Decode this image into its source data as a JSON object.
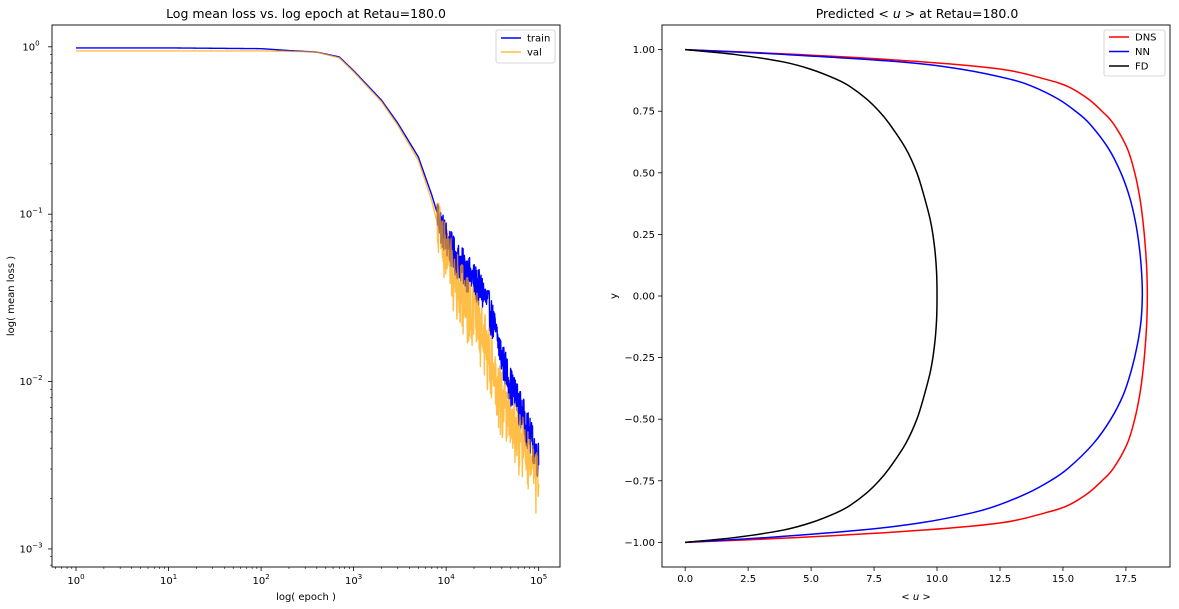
{
  "chart_data": [
    {
      "type": "line",
      "title": "Log mean loss vs. log epoch at Retau=180.0",
      "xlabel": "log( epoch )",
      "ylabel": "log( mean loss )",
      "xscale": "log",
      "yscale": "log",
      "xlim": [
        0.55,
        170000
      ],
      "ylim": [
        0.00078,
        1.35
      ],
      "xticks": [
        {
          "value": 1,
          "base": "10",
          "exp": "0"
        },
        {
          "value": 10,
          "base": "10",
          "exp": "1"
        },
        {
          "value": 100,
          "base": "10",
          "exp": "2"
        },
        {
          "value": 1000,
          "base": "10",
          "exp": "3"
        },
        {
          "value": 10000,
          "base": "10",
          "exp": "4"
        },
        {
          "value": 100000,
          "base": "10",
          "exp": "5"
        }
      ],
      "yticks": [
        {
          "value": 1,
          "base": "10",
          "exp": "0"
        },
        {
          "value": 0.1,
          "base": "10",
          "exp": "−1"
        },
        {
          "value": 0.01,
          "base": "10",
          "exp": "−2"
        },
        {
          "value": 0.001,
          "base": "10",
          "exp": "−3"
        }
      ],
      "legend_position": "top-right",
      "series": [
        {
          "name": "train",
          "color": "#0000ff",
          "x": [
            1,
            10,
            100,
            200,
            400,
            700,
            1000,
            2000,
            3000,
            5000,
            7000,
            9000,
            12000,
            16000,
            20000,
            25000,
            30000,
            40000,
            50000,
            60000,
            70000,
            80000,
            90000,
            100000
          ],
          "y": [
            0.985,
            0.985,
            0.975,
            0.95,
            0.93,
            0.87,
            0.72,
            0.48,
            0.35,
            0.22,
            0.13,
            0.082,
            0.058,
            0.047,
            0.04,
            0.034,
            0.026,
            0.014,
            0.0095,
            0.0075,
            0.006,
            0.0048,
            0.004,
            0.0034
          ],
          "noise_from_x": 8000,
          "noise_lo": 0.75,
          "noise_hi": 1.28
        },
        {
          "name": "val",
          "color": "#ffa500",
          "opacity": 0.72,
          "x": [
            1,
            10,
            100,
            200,
            400,
            700,
            1000,
            2000,
            3000,
            5000,
            7000,
            9000,
            12000,
            16000,
            20000,
            25000,
            30000,
            40000,
            50000,
            60000,
            70000,
            80000,
            90000,
            100000
          ],
          "y": [
            0.945,
            0.945,
            0.945,
            0.94,
            0.93,
            0.86,
            0.71,
            0.47,
            0.34,
            0.21,
            0.12,
            0.068,
            0.042,
            0.03,
            0.024,
            0.018,
            0.013,
            0.0075,
            0.0055,
            0.0045,
            0.0038,
            0.0031,
            0.0026,
            0.0023
          ],
          "noise_from_x": 8000,
          "noise_lo": 0.6,
          "noise_hi": 1.55
        }
      ]
    },
    {
      "type": "line",
      "title_parts": {
        "pre": "Predicted ",
        "expr": "< u >",
        "post": " at Retau=180.0"
      },
      "xlabel": "< u >",
      "ylabel": "y",
      "xlim": [
        -0.92,
        19.25
      ],
      "ylim": [
        -1.1,
        1.1
      ],
      "xticks": [
        {
          "value": 0.0,
          "label": "0.0"
        },
        {
          "value": 2.5,
          "label": "2.5"
        },
        {
          "value": 5.0,
          "label": "5.0"
        },
        {
          "value": 7.5,
          "label": "7.5"
        },
        {
          "value": 10.0,
          "label": "10.0"
        },
        {
          "value": 12.5,
          "label": "12.5"
        },
        {
          "value": 15.0,
          "label": "15.0"
        },
        {
          "value": 17.5,
          "label": "17.5"
        }
      ],
      "yticks": [
        {
          "value": 1.0,
          "label": "1.00"
        },
        {
          "value": 0.75,
          "label": "0.75"
        },
        {
          "value": 0.5,
          "label": "0.50"
        },
        {
          "value": 0.25,
          "label": "0.25"
        },
        {
          "value": 0.0,
          "label": "0.00"
        },
        {
          "value": -0.25,
          "label": "−0.25"
        },
        {
          "value": -0.5,
          "label": "−0.50"
        },
        {
          "value": -0.75,
          "label": "−0.75"
        },
        {
          "value": -1.0,
          "label": "−1.00"
        }
      ],
      "legend_position": "top-right",
      "series": [
        {
          "name": "DNS",
          "color": "#ff0000",
          "y": [
            1.0,
            0.98,
            0.95,
            0.92,
            0.88,
            0.85,
            0.8,
            0.75,
            0.7,
            0.6,
            0.5,
            0.4,
            0.3,
            0.2,
            0.1,
            0.0,
            -0.1,
            -0.2,
            -0.3,
            -0.4,
            -0.5,
            -0.6,
            -0.7,
            -0.75,
            -0.8,
            -0.85,
            -0.88,
            -0.92,
            -0.95,
            -0.98,
            -1.0
          ],
          "x": [
            0.0,
            4.5,
            9.5,
            12.6,
            14.3,
            15.2,
            16.0,
            16.55,
            17.0,
            17.55,
            17.85,
            18.05,
            18.18,
            18.27,
            18.33,
            18.35,
            18.33,
            18.27,
            18.18,
            18.05,
            17.85,
            17.55,
            17.0,
            16.55,
            16.0,
            15.2,
            14.3,
            12.6,
            9.5,
            4.5,
            0.0
          ]
        },
        {
          "name": "NN",
          "color": "#0000ff",
          "y": [
            1.0,
            0.98,
            0.95,
            0.92,
            0.88,
            0.85,
            0.8,
            0.75,
            0.7,
            0.6,
            0.5,
            0.4,
            0.3,
            0.2,
            0.1,
            0.0,
            -0.1,
            -0.2,
            -0.3,
            -0.4,
            -0.5,
            -0.6,
            -0.7,
            -0.75,
            -0.8,
            -0.85,
            -0.88,
            -0.92,
            -0.95,
            -0.98,
            -1.0
          ],
          "x": [
            0.0,
            4.0,
            8.6,
            11.0,
            12.9,
            13.8,
            14.8,
            15.5,
            16.05,
            16.8,
            17.3,
            17.65,
            17.88,
            18.03,
            18.12,
            18.15,
            18.1,
            17.95,
            17.72,
            17.4,
            16.9,
            16.2,
            15.2,
            14.5,
            13.6,
            12.4,
            11.4,
            9.4,
            7.0,
            3.3,
            0.0
          ]
        },
        {
          "name": "FD",
          "color": "#000000",
          "y": [
            1.0,
            0.98,
            0.95,
            0.92,
            0.88,
            0.85,
            0.8,
            0.75,
            0.7,
            0.6,
            0.5,
            0.4,
            0.3,
            0.2,
            0.1,
            0.0,
            -0.1,
            -0.2,
            -0.3,
            -0.4,
            -0.5,
            -0.6,
            -0.7,
            -0.75,
            -0.8,
            -0.85,
            -0.88,
            -0.92,
            -0.95,
            -0.98,
            -1.0
          ],
          "x": [
            0.0,
            2.0,
            3.9,
            5.0,
            6.0,
            6.55,
            7.2,
            7.7,
            8.1,
            8.75,
            9.2,
            9.5,
            9.75,
            9.9,
            9.98,
            10.0,
            9.98,
            9.9,
            9.75,
            9.5,
            9.2,
            8.75,
            8.1,
            7.7,
            7.2,
            6.55,
            6.0,
            5.0,
            3.9,
            2.0,
            0.0
          ]
        }
      ]
    }
  ]
}
